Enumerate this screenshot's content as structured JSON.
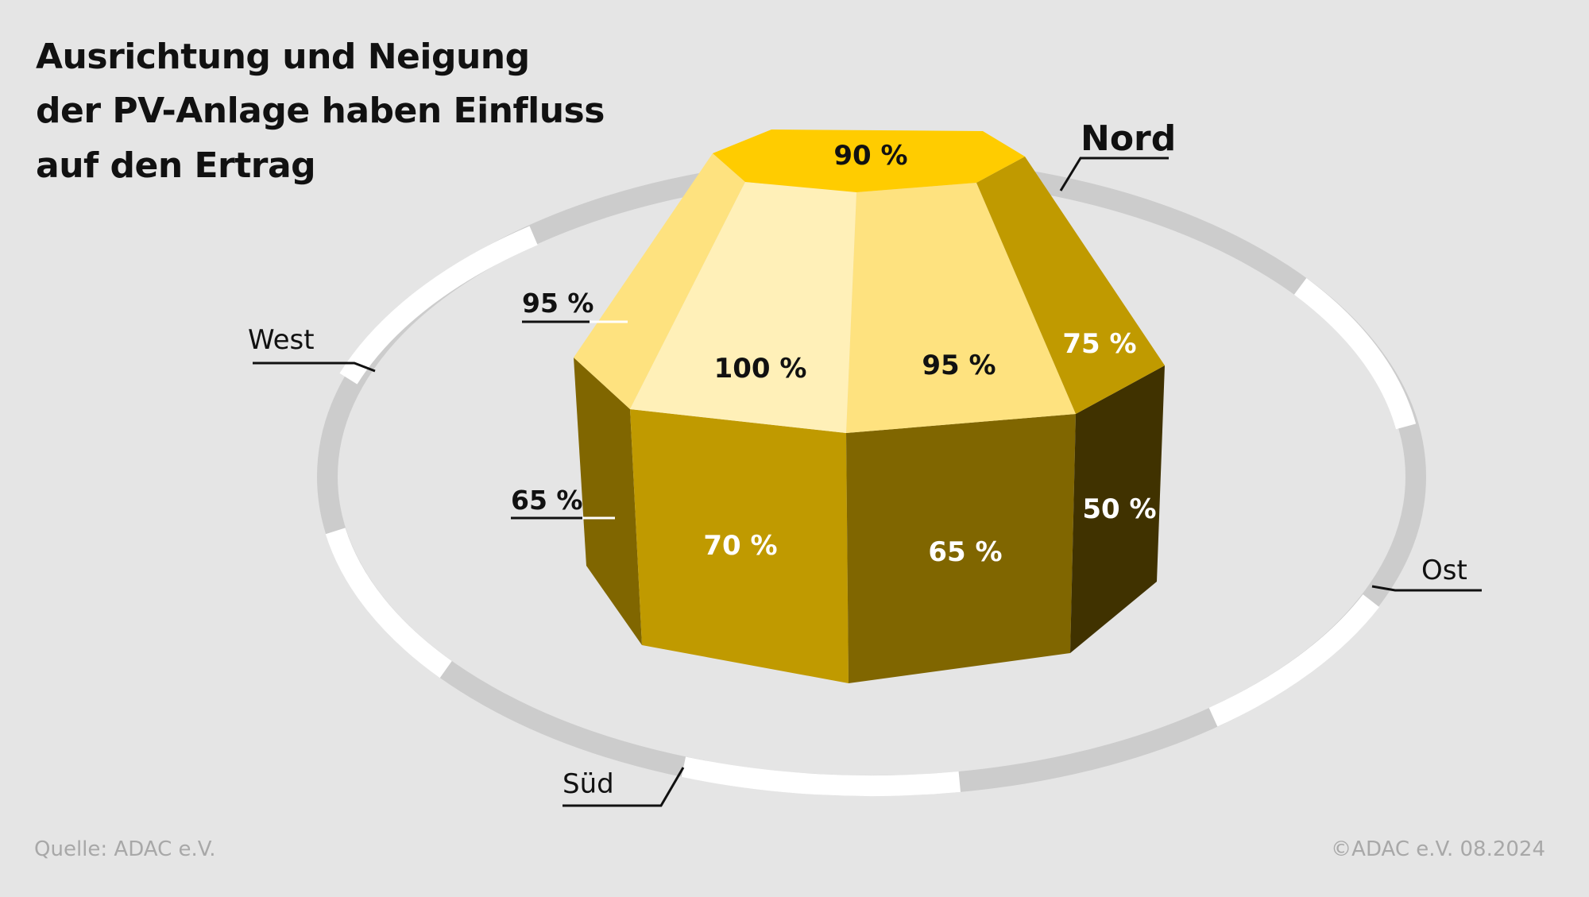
{
  "title": {
    "line1": "Ausrichtung und Neigung",
    "line2": "der PV-Anlage haben Einfluss",
    "line3": "auf den Ertrag"
  },
  "compass": {
    "north": "Nord",
    "west": "West",
    "east": "Ost",
    "south": "Süd"
  },
  "faces": {
    "top": "90 %",
    "upper_west": "95 %",
    "upper_southwest": "100 %",
    "upper_southeast": "95 %",
    "upper_east": "75 %",
    "lower_west": "65 %",
    "lower_southwest": "70 %",
    "lower_southeast": "65 %",
    "lower_east": "50 %"
  },
  "colors": {
    "background": "#e5e5e5",
    "top": "#ffcc00",
    "upper_light": "#fff0b8",
    "upper_mid": "#fee27f",
    "upper_dark": "#c09a00",
    "lower_gold": "#c09a00",
    "lower_olive": "#806600",
    "lower_dark": "#403200",
    "ring_grey": "#cccccc",
    "ring_white": "#ffffff"
  },
  "footer": {
    "source": "Quelle: ADAC e.V.",
    "copyright": "©ADAC e.V. 08.2024"
  }
}
